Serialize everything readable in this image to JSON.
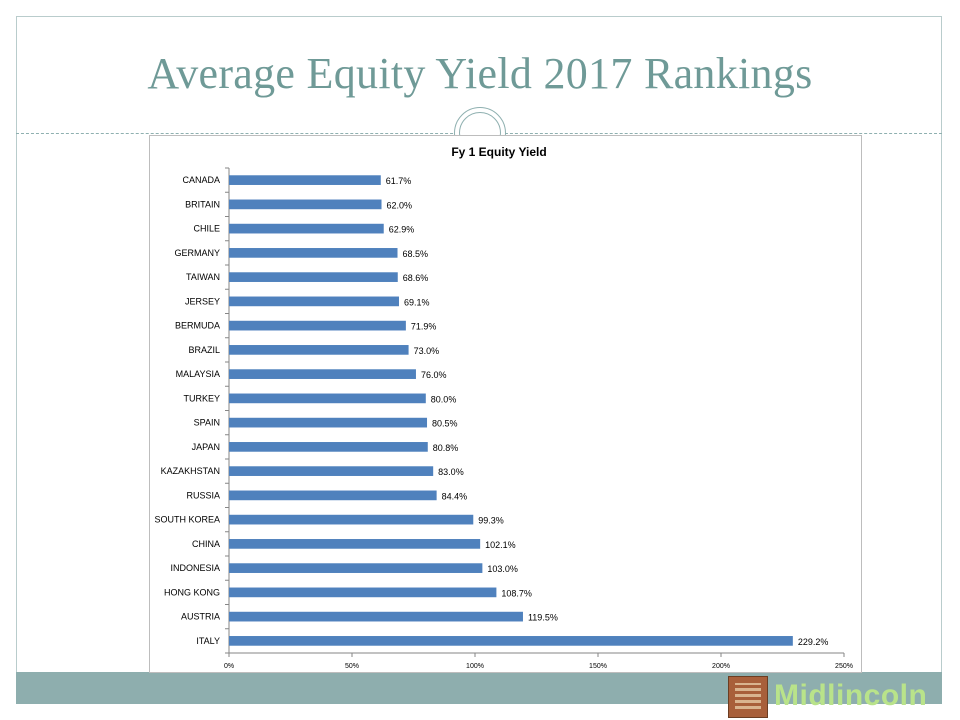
{
  "slide": {
    "title": "Average Equity Yield 2017 Rankings",
    "logo_text": "Midlincoln"
  },
  "colors": {
    "title": "#6f9a97",
    "bar": "#4f81bd",
    "band": "#8eaeae",
    "logo_text": "#b9e38a"
  },
  "chart_data": {
    "type": "bar",
    "orientation": "horizontal",
    "title": "Fy 1 Equity Yield",
    "categories": [
      "CANADA",
      "BRITAIN",
      "CHILE",
      "GERMANY",
      "TAIWAN",
      "JERSEY",
      "BERMUDA",
      "BRAZIL",
      "MALAYSIA",
      "TURKEY",
      "SPAIN",
      "JAPAN",
      "KAZAKHSTAN",
      "RUSSIA",
      "SOUTH KOREA",
      "CHINA",
      "INDONESIA",
      "HONG KONG",
      "AUSTRIA",
      "ITALY"
    ],
    "values": [
      61.7,
      62.0,
      62.9,
      68.5,
      68.6,
      69.1,
      71.9,
      73.0,
      76.0,
      80.0,
      80.5,
      80.8,
      83.0,
      84.4,
      99.3,
      102.1,
      103.0,
      108.7,
      119.5,
      229.2
    ],
    "value_labels": [
      "61.7%",
      "62.0%",
      "62.9%",
      "68.5%",
      "68.6%",
      "69.1%",
      "71.9%",
      "73.0%",
      "76.0%",
      "80.0%",
      "80.5%",
      "80.8%",
      "83.0%",
      "84.4%",
      "99.3%",
      "102.1%",
      "103.0%",
      "108.7%",
      "119.5%",
      "229.2%"
    ],
    "xlim": [
      0,
      250
    ],
    "x_ticks": [
      0,
      50,
      100,
      150,
      200,
      250
    ],
    "x_tick_labels": [
      "0%",
      "50%",
      "100%",
      "150%",
      "200%",
      "250%"
    ],
    "grid": false,
    "legend": "none"
  }
}
